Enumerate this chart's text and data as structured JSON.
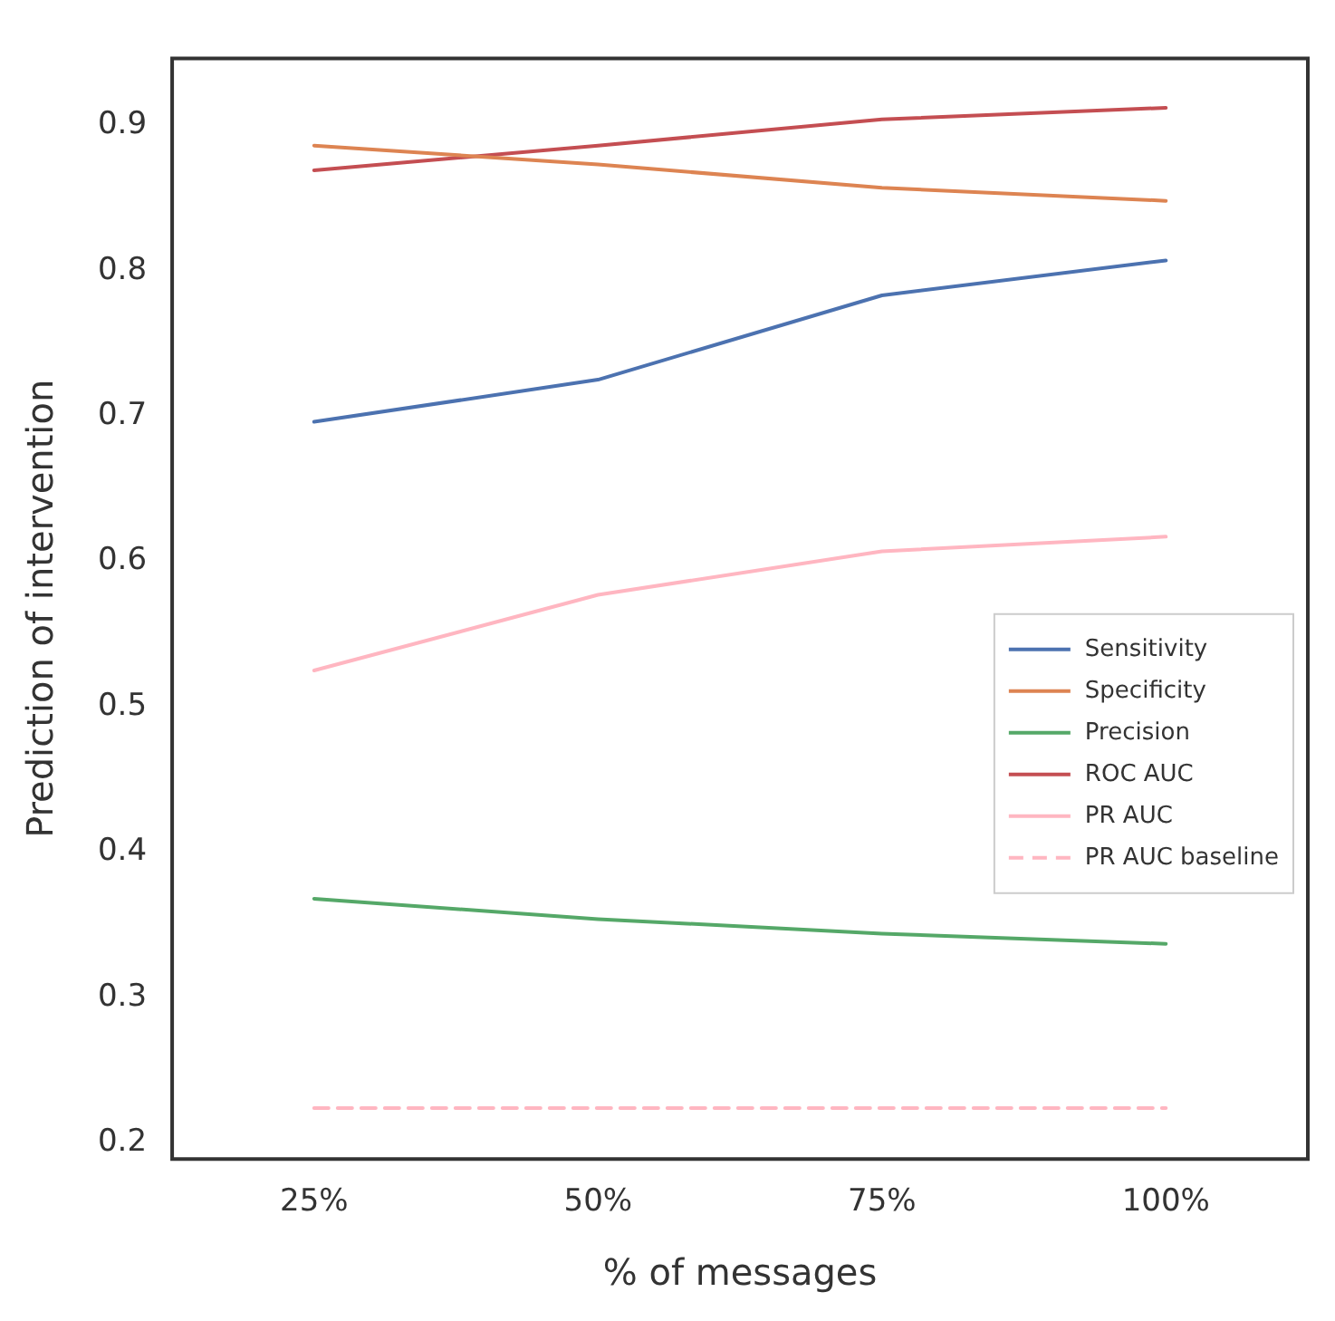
{
  "chart_data": {
    "type": "line",
    "xlabel": "% of messages",
    "ylabel": "Prediction of intervention",
    "categories": [
      "25%",
      "50%",
      "75%",
      "100%"
    ],
    "series": [
      {
        "name": "Sensitivity",
        "color": "#4c72b0",
        "values": [
          0.696,
          0.725,
          0.783,
          0.807
        ]
      },
      {
        "name": "Specificity",
        "color": "#dd8452",
        "values": [
          0.886,
          0.873,
          0.857,
          0.848
        ]
      },
      {
        "name": "Precision",
        "color": "#55a868",
        "values": [
          0.368,
          0.354,
          0.344,
          0.337
        ]
      },
      {
        "name": "ROC AUC",
        "color": "#c44e52",
        "values": [
          0.869,
          0.886,
          0.904,
          0.912
        ]
      },
      {
        "name": "PR AUC",
        "color": "#ffb6c1",
        "values": [
          0.525,
          0.577,
          0.607,
          0.617
        ]
      },
      {
        "name": "PR AUC baseline",
        "color": "#ffb6c1",
        "line_style": "dashed",
        "values": [
          0.224,
          0.224,
          0.224,
          0.224
        ]
      }
    ],
    "ylim": [
      0.189,
      0.946
    ],
    "yticks": [
      0.2,
      0.3,
      0.4,
      0.5,
      0.6,
      0.7,
      0.8,
      0.9
    ],
    "grid": false,
    "legend": "center right",
    "marker": "none",
    "line_style": "solid"
  }
}
